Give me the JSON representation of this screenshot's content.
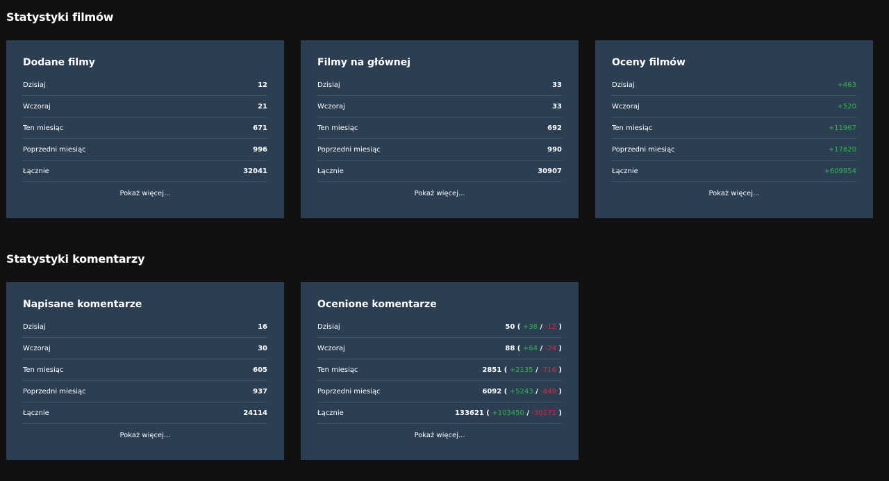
{
  "sections": {
    "films_title": "Statystyki filmów",
    "comments_title": "Statystyki komentarzy"
  },
  "colors": {
    "background": "#111111",
    "card": "#2c3e52",
    "positive": "#2eb84b",
    "negative": "#e8213f"
  },
  "cards": {
    "added": {
      "title": "Dodane filmy",
      "rows": [
        {
          "label": "Dzisiaj",
          "value": "12"
        },
        {
          "label": "Wczoraj",
          "value": "21"
        },
        {
          "label": "Ten miesiąc",
          "value": "671"
        },
        {
          "label": "Poprzedni miesiąc",
          "value": "996"
        },
        {
          "label": "Łącznie",
          "value": "32041"
        }
      ],
      "more": "Pokaż więcej..."
    },
    "main": {
      "title": "Filmy na głównej",
      "rows": [
        {
          "label": "Dzisiaj",
          "value": "33"
        },
        {
          "label": "Wczoraj",
          "value": "33"
        },
        {
          "label": "Ten miesiąc",
          "value": "692"
        },
        {
          "label": "Poprzedni miesiąc",
          "value": "990"
        },
        {
          "label": "Łącznie",
          "value": "30907"
        }
      ],
      "more": "Pokaż więcej..."
    },
    "ratings": {
      "title": "Oceny filmów",
      "rows": [
        {
          "label": "Dzisiaj",
          "value": "+463"
        },
        {
          "label": "Wczoraj",
          "value": "+520"
        },
        {
          "label": "Ten miesiąc",
          "value": "+11967"
        },
        {
          "label": "Poprzedni miesiąc",
          "value": "+17820"
        },
        {
          "label": "Łącznie",
          "value": "+609954"
        }
      ],
      "more": "Pokaż więcej..."
    },
    "written": {
      "title": "Napisane komentarze",
      "rows": [
        {
          "label": "Dzisiaj",
          "value": "16"
        },
        {
          "label": "Wczoraj",
          "value": "30"
        },
        {
          "label": "Ten miesiąc",
          "value": "605"
        },
        {
          "label": "Poprzedni miesiąc",
          "value": "937"
        },
        {
          "label": "Łącznie",
          "value": "24114"
        }
      ],
      "more": "Pokaż więcej..."
    },
    "rated_comments": {
      "title": "Ocenione komentarze",
      "rows": [
        {
          "label": "Dzisiaj",
          "total": "50",
          "plus": "+38",
          "minus": "-12"
        },
        {
          "label": "Wczoraj",
          "total": "88",
          "plus": "+64",
          "minus": "-24"
        },
        {
          "label": "Ten miesiąc",
          "total": "2851",
          "plus": "+2135",
          "minus": "-716"
        },
        {
          "label": "Poprzedni miesiąc",
          "total": "6092",
          "plus": "+5243",
          "minus": "-849"
        },
        {
          "label": "Łącznie",
          "total": "133621",
          "plus": "+103450",
          "minus": "-30171"
        }
      ],
      "more": "Pokaż więcej..."
    }
  }
}
